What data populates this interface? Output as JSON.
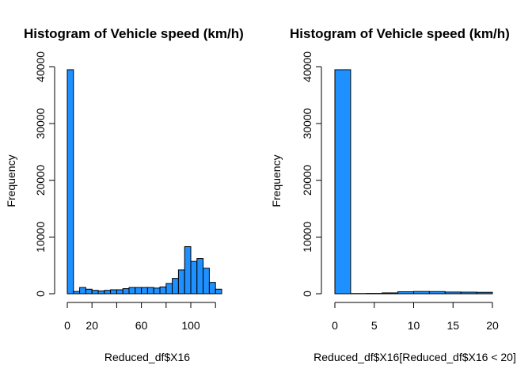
{
  "chart_data": [
    {
      "type": "bar",
      "title": "Histogram of Vehicle speed (km/h)",
      "xlabel": "Reduced_df$X16",
      "ylabel": "Frequency",
      "xlim": [
        0,
        130
      ],
      "ylim": [
        0,
        40000
      ],
      "xticks": [
        0,
        20,
        60,
        100
      ],
      "xtick_labels": [
        "0",
        "20",
        "60",
        "100"
      ],
      "yticks": [
        0,
        10000,
        20000,
        30000,
        40000
      ],
      "ytick_labels": [
        "0",
        "10000",
        "20000",
        "30000",
        "40000"
      ],
      "bar_color": "#1E90FF",
      "bins": [
        {
          "x0": 0,
          "x1": 5,
          "count": 39500
        },
        {
          "x0": 5,
          "x1": 10,
          "count": 400
        },
        {
          "x0": 10,
          "x1": 15,
          "count": 1100
        },
        {
          "x0": 15,
          "x1": 20,
          "count": 800
        },
        {
          "x0": 20,
          "x1": 25,
          "count": 600
        },
        {
          "x0": 25,
          "x1": 30,
          "count": 500
        },
        {
          "x0": 30,
          "x1": 35,
          "count": 600
        },
        {
          "x0": 35,
          "x1": 40,
          "count": 700
        },
        {
          "x0": 40,
          "x1": 45,
          "count": 700
        },
        {
          "x0": 45,
          "x1": 50,
          "count": 900
        },
        {
          "x0": 50,
          "x1": 55,
          "count": 1100
        },
        {
          "x0": 55,
          "x1": 60,
          "count": 1100
        },
        {
          "x0": 60,
          "x1": 65,
          "count": 1100
        },
        {
          "x0": 65,
          "x1": 70,
          "count": 1100
        },
        {
          "x0": 70,
          "x1": 75,
          "count": 1000
        },
        {
          "x0": 75,
          "x1": 80,
          "count": 1200
        },
        {
          "x0": 80,
          "x1": 85,
          "count": 1800
        },
        {
          "x0": 85,
          "x1": 90,
          "count": 2700
        },
        {
          "x0": 90,
          "x1": 95,
          "count": 4200
        },
        {
          "x0": 95,
          "x1": 100,
          "count": 8300
        },
        {
          "x0": 100,
          "x1": 105,
          "count": 5700
        },
        {
          "x0": 105,
          "x1": 110,
          "count": 6200
        },
        {
          "x0": 110,
          "x1": 115,
          "count": 4500
        },
        {
          "x0": 115,
          "x1": 120,
          "count": 2000
        },
        {
          "x0": 120,
          "x1": 125,
          "count": 800
        }
      ]
    },
    {
      "type": "bar",
      "title": "Histogram of Vehicle speed (km/h)",
      "xlabel": "Reduced_df$X16[Reduced_df$X16 < 20]",
      "ylabel": "Frequency",
      "xlim": [
        0,
        20
      ],
      "ylim": [
        0,
        40000
      ],
      "xticks": [
        0,
        5,
        10,
        15,
        20
      ],
      "xtick_labels": [
        "0",
        "5",
        "10",
        "15",
        "20"
      ],
      "yticks": [
        0,
        10000,
        20000,
        30000,
        40000
      ],
      "ytick_labels": [
        "0",
        "10000",
        "20000",
        "30000",
        "40000"
      ],
      "bar_color": "#1E90FF",
      "bins": [
        {
          "x0": 0,
          "x1": 2,
          "count": 39500
        },
        {
          "x0": 2,
          "x1": 4,
          "count": 40
        },
        {
          "x0": 4,
          "x1": 6,
          "count": 60
        },
        {
          "x0": 6,
          "x1": 8,
          "count": 150
        },
        {
          "x0": 8,
          "x1": 10,
          "count": 350
        },
        {
          "x0": 10,
          "x1": 12,
          "count": 400
        },
        {
          "x0": 12,
          "x1": 14,
          "count": 380
        },
        {
          "x0": 14,
          "x1": 16,
          "count": 300
        },
        {
          "x0": 16,
          "x1": 18,
          "count": 280
        },
        {
          "x0": 18,
          "x1": 20,
          "count": 250
        }
      ]
    }
  ]
}
